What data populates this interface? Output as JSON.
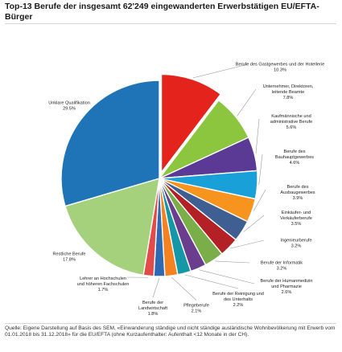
{
  "title": "Top-13 Berufe der insgesamt 62'249 eingewanderten Erwerbstätigen EU/EFTA-Bürger",
  "source": "Quelle: Eigene Darstellung auf Basis des SEM, «Einwanderung ständige und nicht ständige ausländische Wohnbevölkerung mit Erwerb vom 01.01.2018 bis 31.12.2018» für die EU/EFTA (ohne Kurzaufenthalter: Aufenthalt <12 Monate in der CH).",
  "chart_data": {
    "type": "pie",
    "title": "Top-13 Berufe der insgesamt 62'249 eingewanderten Erwerbstätigen EU/EFTA-Bürger",
    "slices": [
      {
        "label": [
          "Berufe des Gastgewerbes und der Hotellerie"
        ],
        "value_label": "10.3%",
        "value": 10.3,
        "color": "#e3231c"
      },
      {
        "label": [
          "Unternehmer, Direktoren,",
          "leitende Beamte"
        ],
        "value_label": "7.8%",
        "value": 7.8,
        "color": "#8cc63f"
      },
      {
        "label": [
          "Kaufmännische und",
          "administrative Berufe"
        ],
        "value_label": "5.6%",
        "value": 5.6,
        "color": "#5b3a96"
      },
      {
        "label": [
          "Berufe des",
          "Bauhauptgewerbes"
        ],
        "value_label": "4.6%",
        "value": 4.6,
        "color": "#1aa0d8"
      },
      {
        "label": [
          "Berufe des",
          "Ausbaugewerbes"
        ],
        "value_label": "3.9%",
        "value": 3.9,
        "color": "#f7941d"
      },
      {
        "label": [
          "Einkäufer- und",
          "Verkäuferberufe"
        ],
        "value_label": "3.5%",
        "value": 3.5,
        "color": "#3f5f93"
      },
      {
        "label": [
          "Ingenieurberufe"
        ],
        "value_label": "3.2%",
        "value": 3.2,
        "color": "#b32025"
      },
      {
        "label": [
          "Berufe der Informatik"
        ],
        "value_label": "3.2%",
        "value": 3.2,
        "color": "#7aae48"
      },
      {
        "label": [
          "Berufe der Humanmedizin",
          "und Pharmazie"
        ],
        "value_label": "2.6%",
        "value": 2.6,
        "color": "#6a3d8f"
      },
      {
        "label": [
          "Berufe der Reinigung und",
          "des Unterhalts"
        ],
        "value_label": "2.2%",
        "value": 2.2,
        "color": "#1597a8"
      },
      {
        "label": [
          "Pflegeberufe"
        ],
        "value_label": "2.1%",
        "value": 2.1,
        "color": "#f58220"
      },
      {
        "label": [
          "Berufe der",
          "Landwirtschaft"
        ],
        "value_label": "1.8%",
        "value": 1.8,
        "color": "#2f69b3"
      },
      {
        "label": [
          "Lehrer an Hochschulen",
          "und höheren Fachschulen"
        ],
        "value_label": "1.7%",
        "value": 1.7,
        "color": "#e34b4b"
      },
      {
        "label": [
          "Restliche Berufe"
        ],
        "value_label": "17.8%",
        "value": 17.8,
        "color": "#a5d17c"
      },
      {
        "label": [
          "Unklare Qualifikation"
        ],
        "value_label": "29.5%",
        "value": 29.5,
        "color": "#1f73b7"
      }
    ]
  }
}
